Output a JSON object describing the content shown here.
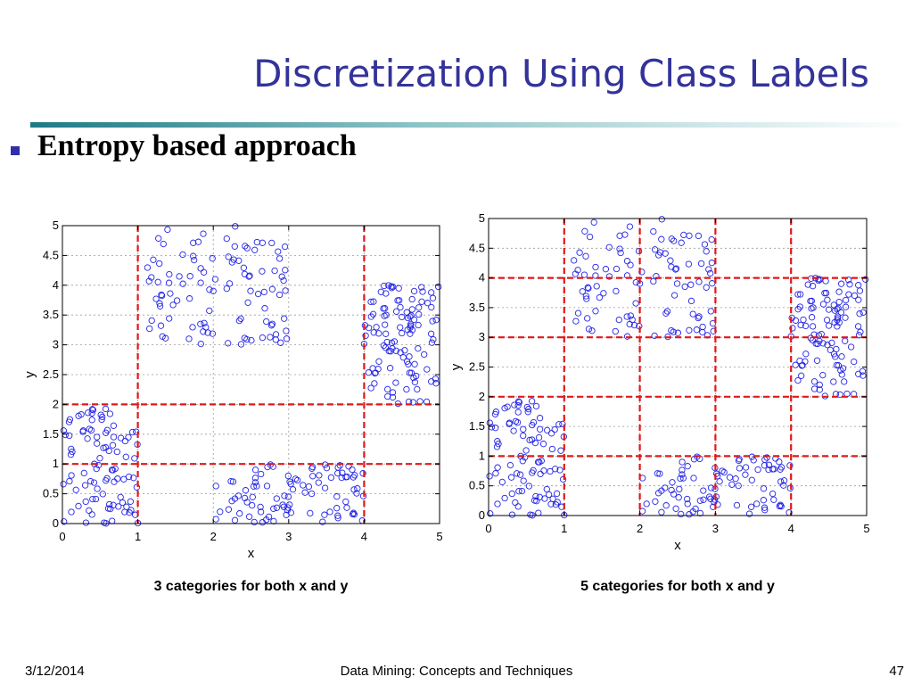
{
  "slide": {
    "title": "Discretization Using Class Labels",
    "bullet": "Entropy based approach",
    "footer": {
      "date": "3/12/2014",
      "center": "Data Mining: Concepts and Techniques",
      "page": "47"
    }
  },
  "colors": {
    "title": "#33339a",
    "points": "#2323e6",
    "cut_lines": "#e01818"
  },
  "chart_data": [
    {
      "type": "scatter",
      "title": "",
      "caption": "3 categories for both x and y",
      "xlabel": "x",
      "ylabel": "y",
      "xlim": [
        0,
        5
      ],
      "ylim": [
        0,
        5
      ],
      "xticks": [
        0,
        1,
        2,
        3,
        4,
        5
      ],
      "yticks": [
        0,
        0.5,
        1,
        1.5,
        2,
        2.5,
        3,
        3.5,
        4,
        4.5,
        5
      ],
      "xtick_labels": [
        "0",
        "1",
        "2",
        "3",
        "4",
        "5"
      ],
      "ytick_labels": [
        "0",
        "0.5",
        "1",
        "1.5",
        "2",
        "2.5",
        "3",
        "3.5",
        "4",
        "4.5",
        "5"
      ],
      "grid": true,
      "x_cuts": [
        1,
        4
      ],
      "y_cuts": [
        1,
        2
      ],
      "clusters": [
        {
          "x": [
            0,
            1
          ],
          "y": [
            0,
            2
          ],
          "n": 95
        },
        {
          "x": [
            1,
            2
          ],
          "y": [
            3,
            5
          ],
          "n": 50
        },
        {
          "x": [
            2,
            3
          ],
          "y": [
            3,
            5
          ],
          "n": 55
        },
        {
          "x": [
            2,
            3
          ],
          "y": [
            0,
            1
          ],
          "n": 45
        },
        {
          "x": [
            3,
            4
          ],
          "y": [
            0,
            1
          ],
          "n": 50
        },
        {
          "x": [
            4,
            5
          ],
          "y": [
            2,
            4
          ],
          "n": 110
        }
      ]
    },
    {
      "type": "scatter",
      "title": "",
      "caption": "5 categories for both x and y",
      "xlabel": "x",
      "ylabel": "y",
      "xlim": [
        0,
        5
      ],
      "ylim": [
        0,
        5
      ],
      "xticks": [
        0,
        1,
        2,
        3,
        4,
        5
      ],
      "yticks": [
        0,
        0.5,
        1,
        1.5,
        2,
        2.5,
        3,
        3.5,
        4,
        4.5,
        5
      ],
      "xtick_labels": [
        "0",
        "1",
        "2",
        "3",
        "4",
        "5"
      ],
      "ytick_labels": [
        "0",
        "0.5",
        "1",
        "1.5",
        "2",
        "2.5",
        "3",
        "3.5",
        "4",
        "4.5",
        "5"
      ],
      "grid": true,
      "x_cuts": [
        1,
        2,
        3,
        4
      ],
      "y_cuts": [
        1,
        2,
        3,
        4
      ],
      "clusters": [
        {
          "x": [
            0,
            1
          ],
          "y": [
            0,
            2
          ],
          "n": 95
        },
        {
          "x": [
            1,
            2
          ],
          "y": [
            3,
            5
          ],
          "n": 50
        },
        {
          "x": [
            2,
            3
          ],
          "y": [
            3,
            5
          ],
          "n": 55
        },
        {
          "x": [
            2,
            3
          ],
          "y": [
            0,
            1
          ],
          "n": 45
        },
        {
          "x": [
            3,
            4
          ],
          "y": [
            0,
            1
          ],
          "n": 50
        },
        {
          "x": [
            4,
            5
          ],
          "y": [
            2,
            4
          ],
          "n": 110
        }
      ]
    }
  ]
}
